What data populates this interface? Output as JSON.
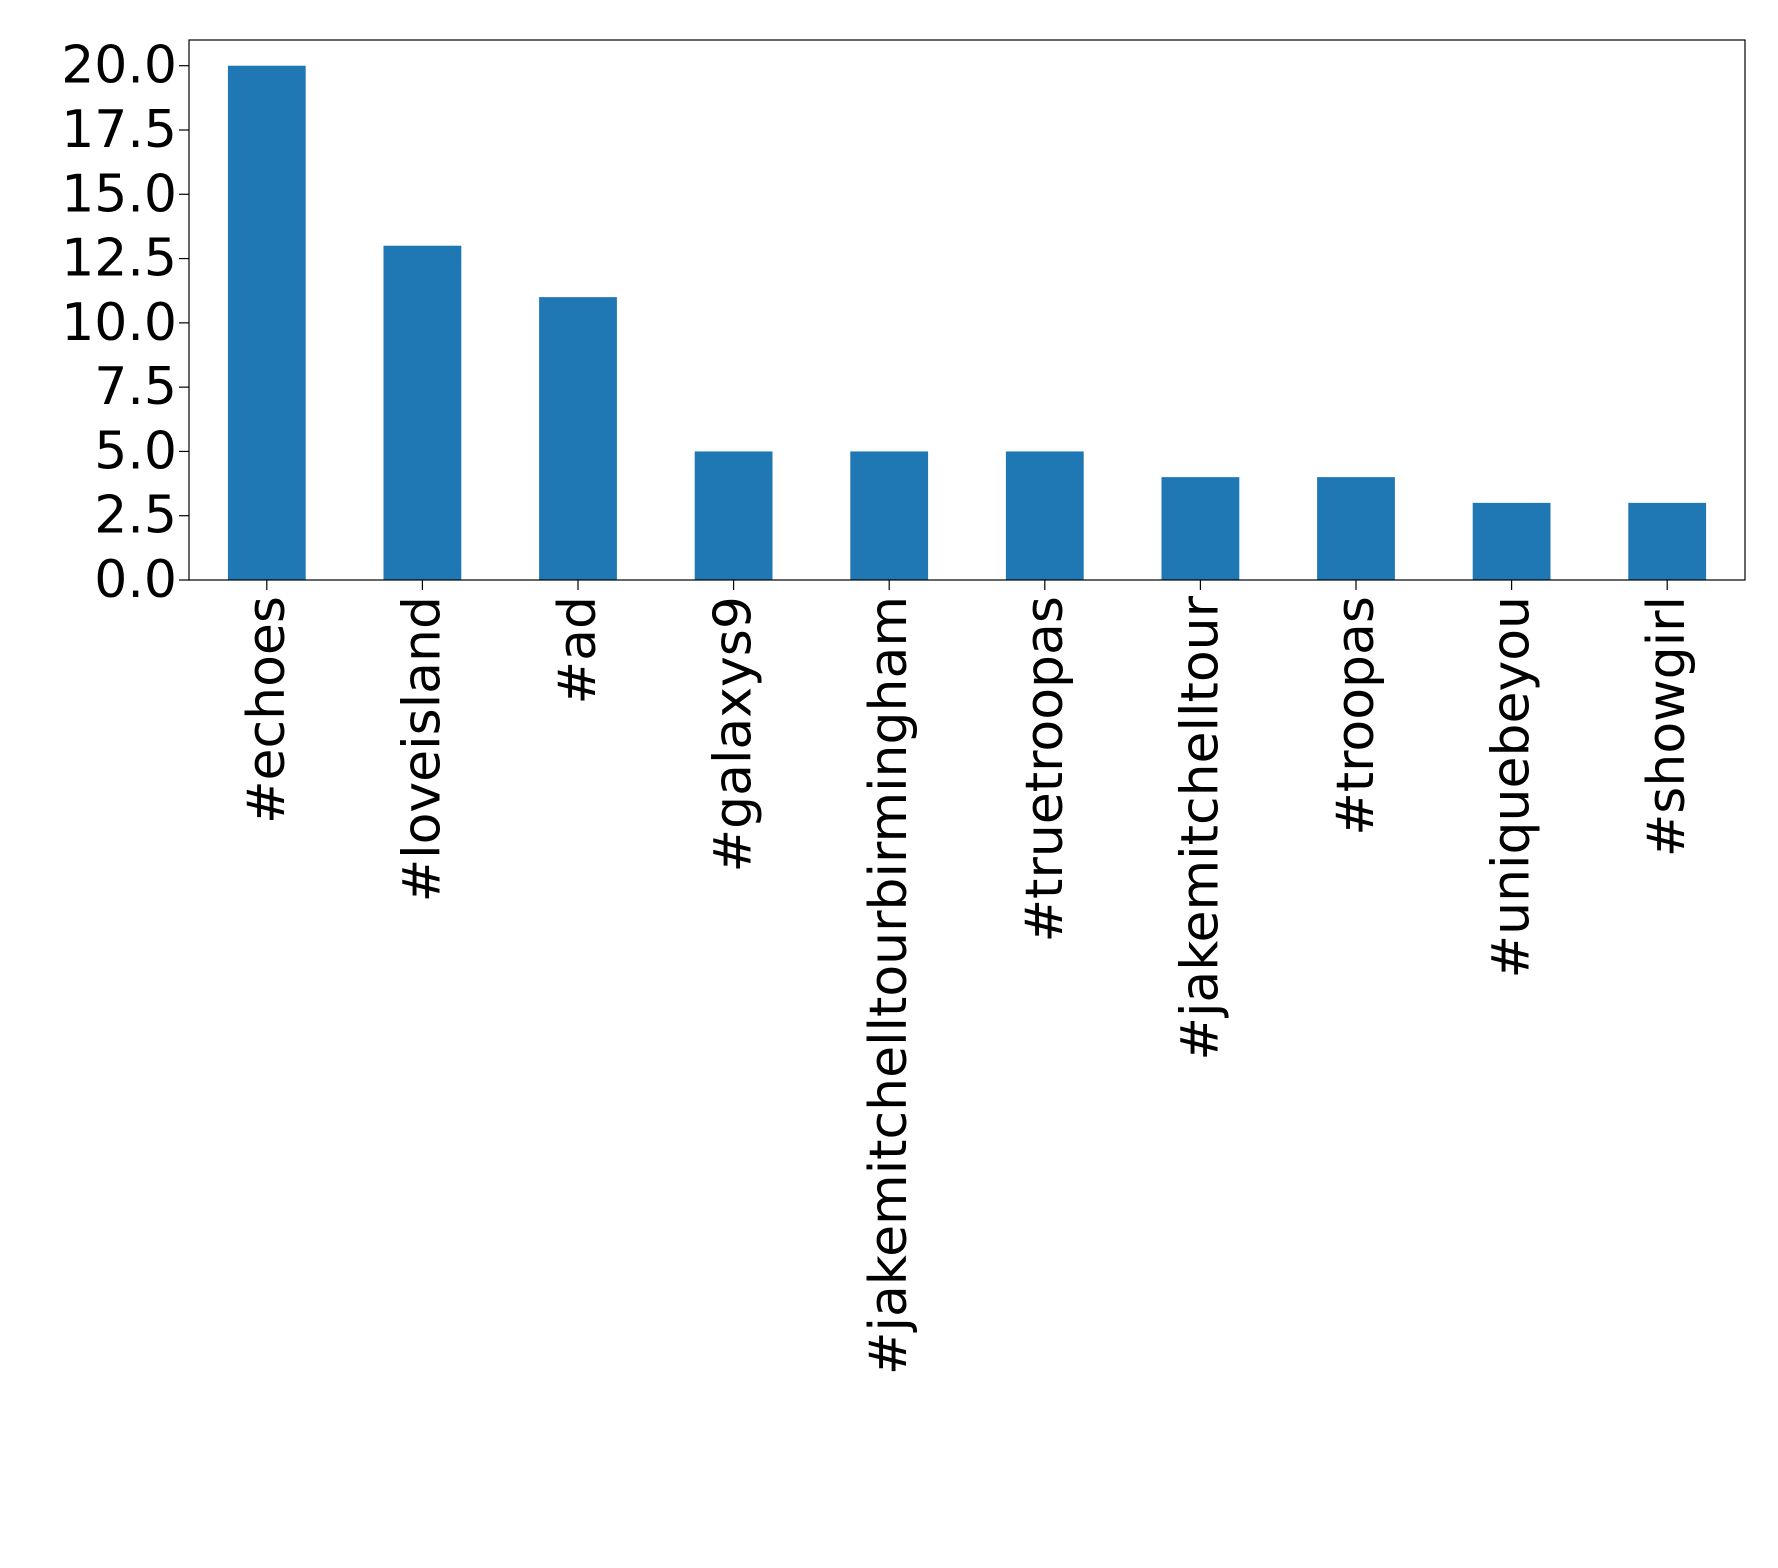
{
  "chart_data": {
    "type": "bar",
    "title": "",
    "xlabel": "",
    "ylabel": "",
    "categories": [
      "#echoes",
      "#loveisland",
      "#ad",
      "#galaxys9",
      "#jakemitchelltourbirmingham",
      "#truetroopas",
      "#jakemitchelltour",
      "#troopas",
      "#uniquebeyou",
      "#showgirl"
    ],
    "values": [
      20,
      13,
      11,
      5,
      5,
      5,
      4,
      4,
      3,
      3
    ],
    "ylim": [
      0,
      21
    ],
    "yticks": [
      0,
      2.5,
      5,
      7.5,
      10,
      12.5,
      15,
      17.5,
      20
    ],
    "ytick_labels": [
      "0.0",
      "2.5",
      "5.0",
      "7.5",
      "10.0",
      "12.5",
      "15.0",
      "17.5",
      "20.0"
    ],
    "grid": false,
    "legend": "none",
    "bar_color": "#1f77b4"
  }
}
